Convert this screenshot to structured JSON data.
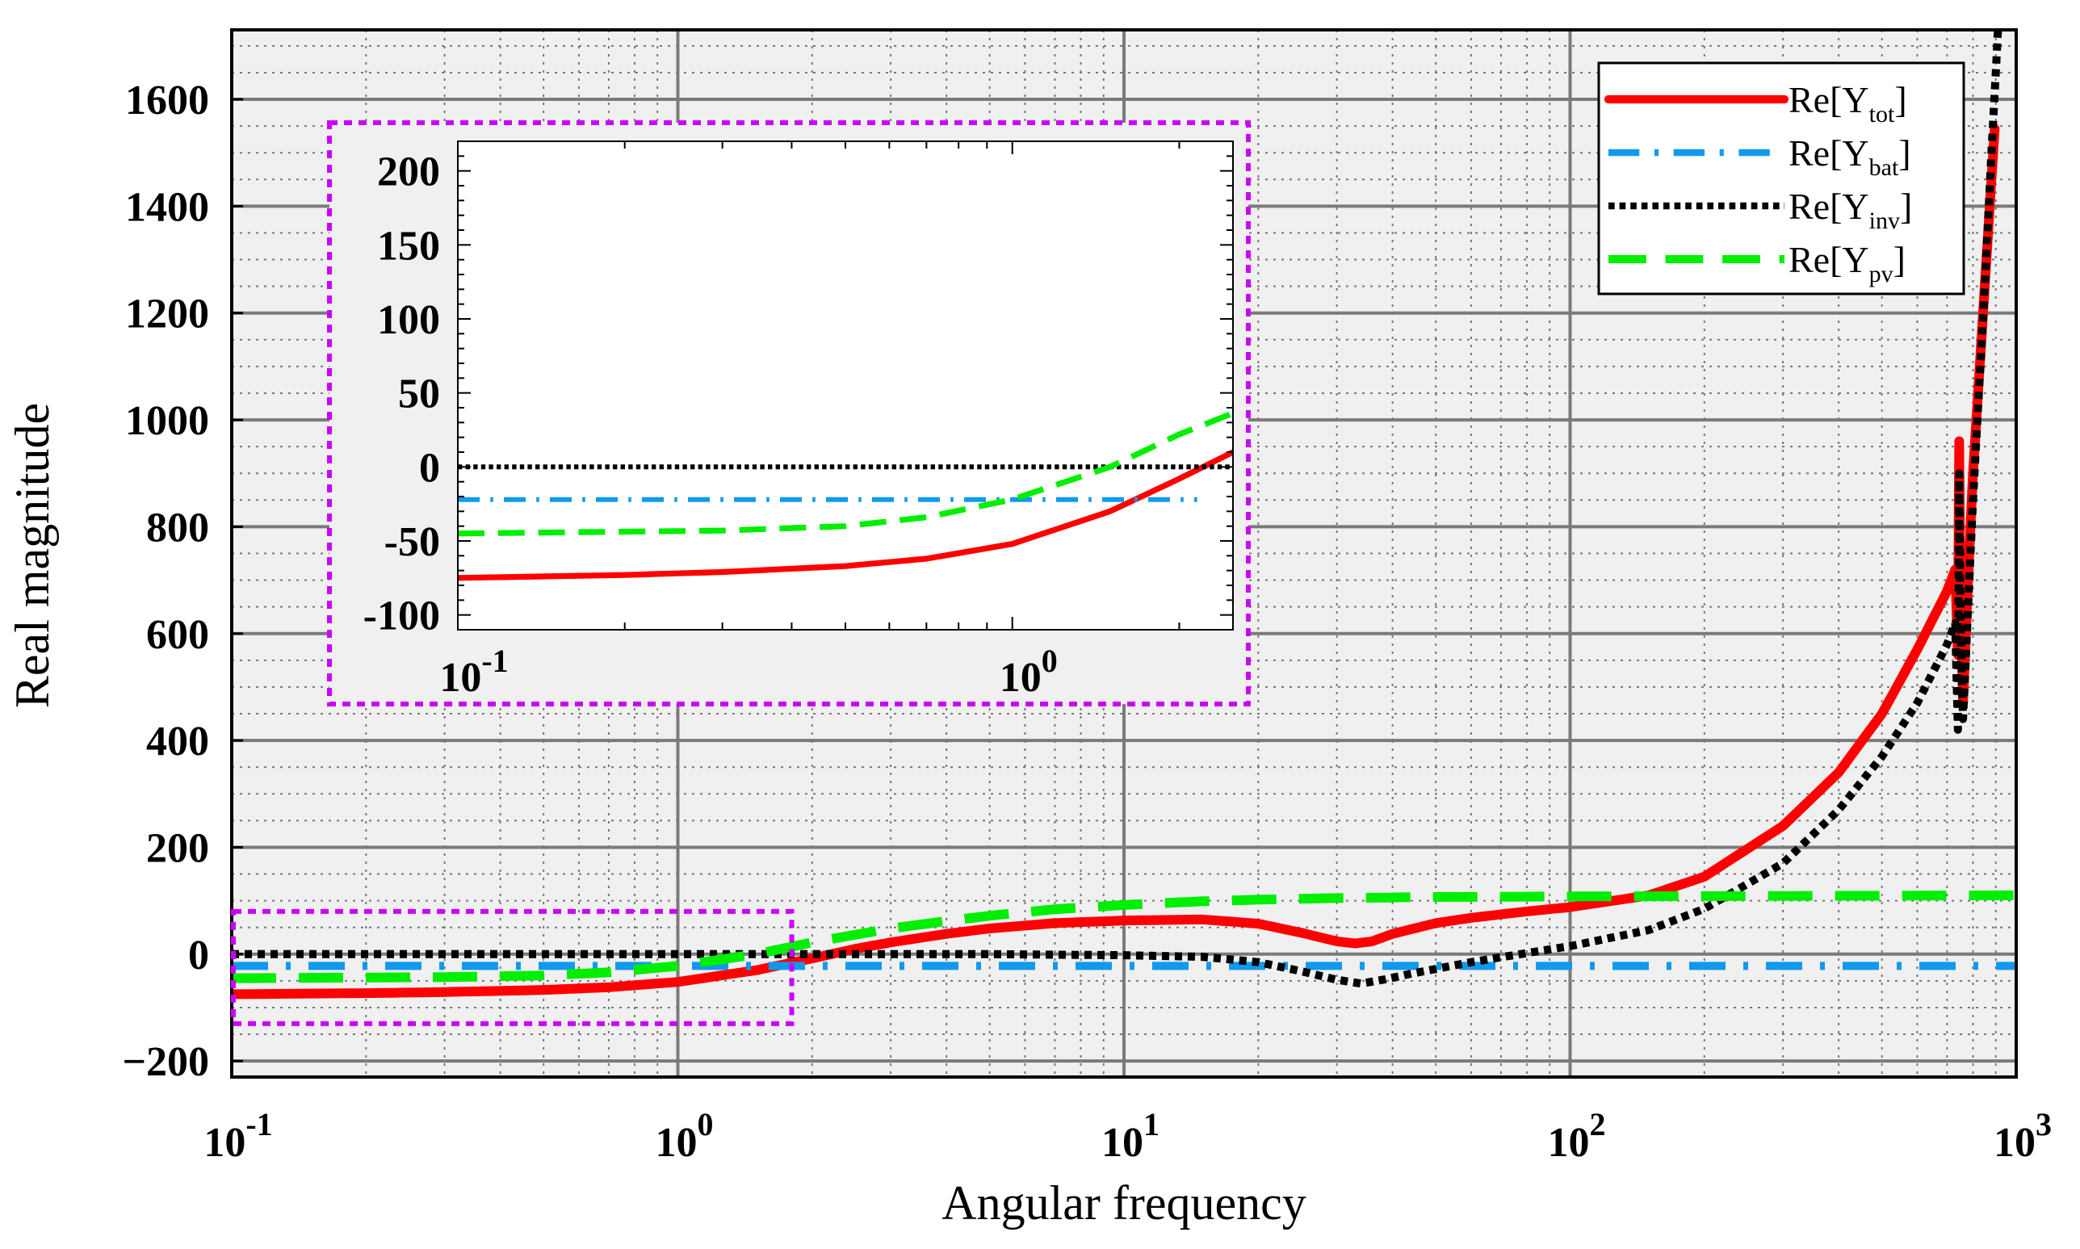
{
  "chart_data": {
    "type": "line",
    "xscale": "log",
    "xlabel": "Angular frequency",
    "ylabel": "Real magnitude",
    "xlim": [
      0.1,
      1000
    ],
    "ylim": [
      -230,
      1730
    ],
    "grid": true,
    "legend_position": "top-right",
    "x_ticks": [
      {
        "value": 0.1,
        "base": "10",
        "exp": "-1"
      },
      {
        "value": 1,
        "base": "10",
        "exp": "0"
      },
      {
        "value": 10,
        "base": "10",
        "exp": "1"
      },
      {
        "value": 100,
        "base": "10",
        "exp": "2"
      },
      {
        "value": 1000,
        "base": "10",
        "exp": "3"
      }
    ],
    "y_ticks": [
      {
        "value": -200,
        "label": "−200"
      },
      {
        "value": 0,
        "label": "0"
      },
      {
        "value": 200,
        "label": "200"
      },
      {
        "value": 400,
        "label": "400"
      },
      {
        "value": 600,
        "label": "600"
      },
      {
        "value": 800,
        "label": "800"
      },
      {
        "value": 1000,
        "label": "1000"
      },
      {
        "value": 1200,
        "label": "1200"
      },
      {
        "value": 1400,
        "label": "1400"
      },
      {
        "value": 1600,
        "label": "1600"
      }
    ],
    "series": [
      {
        "name": "Re[Y_tot]",
        "legend_main": "Re[Y",
        "legend_sub": "tot",
        "legend_close": "]",
        "color": "#ff0000",
        "style": "solid",
        "points": [
          [
            0.1,
            -75
          ],
          [
            0.2,
            -73
          ],
          [
            0.3,
            -71
          ],
          [
            0.5,
            -67
          ],
          [
            0.7,
            -62
          ],
          [
            1,
            -52
          ],
          [
            1.5,
            -30
          ],
          [
            2,
            -8
          ],
          [
            2.5,
            10
          ],
          [
            3,
            22
          ],
          [
            4,
            38
          ],
          [
            5,
            48
          ],
          [
            7,
            58
          ],
          [
            10,
            63
          ],
          [
            15,
            65
          ],
          [
            20,
            57
          ],
          [
            25,
            40
          ],
          [
            30,
            24
          ],
          [
            33,
            20
          ],
          [
            36,
            24
          ],
          [
            40,
            38
          ],
          [
            50,
            58
          ],
          [
            60,
            68
          ],
          [
            80,
            80
          ],
          [
            100,
            88
          ],
          [
            150,
            110
          ],
          [
            200,
            145
          ],
          [
            300,
            240
          ],
          [
            400,
            340
          ],
          [
            500,
            450
          ],
          [
            600,
            570
          ],
          [
            700,
            680
          ],
          [
            730,
            720
          ],
          [
            740,
            560
          ],
          [
            745,
            960
          ],
          [
            750,
            650
          ],
          [
            760,
            470
          ],
          [
            780,
            700
          ],
          [
            800,
            900
          ],
          [
            850,
            1250
          ],
          [
            880,
            1450
          ],
          [
            895,
            1545
          ]
        ]
      },
      {
        "name": "Re[Y_bat]",
        "legend_main": "Re[Y",
        "legend_sub": "bat",
        "legend_close": "]",
        "color": "#1199ee",
        "style": "dashdot",
        "points": [
          [
            0.1,
            -22
          ],
          [
            1000,
            -22
          ]
        ]
      },
      {
        "name": "Re[Y_inv]",
        "legend_main": "Re[Y",
        "legend_sub": "inv",
        "legend_close": "]",
        "color": "#000000",
        "style": "dotted",
        "points": [
          [
            0.1,
            0
          ],
          [
            1,
            0
          ],
          [
            5,
            0
          ],
          [
            10,
            -2
          ],
          [
            15,
            -5
          ],
          [
            20,
            -15
          ],
          [
            25,
            -32
          ],
          [
            30,
            -48
          ],
          [
            34,
            -55
          ],
          [
            38,
            -48
          ],
          [
            45,
            -35
          ],
          [
            60,
            -15
          ],
          [
            80,
            2
          ],
          [
            100,
            15
          ],
          [
            150,
            45
          ],
          [
            200,
            85
          ],
          [
            300,
            170
          ],
          [
            400,
            270
          ],
          [
            500,
            370
          ],
          [
            600,
            470
          ],
          [
            700,
            580
          ],
          [
            730,
            620
          ],
          [
            740,
            420
          ],
          [
            745,
            900
          ],
          [
            750,
            620
          ],
          [
            760,
            440
          ],
          [
            780,
            650
          ],
          [
            800,
            850
          ],
          [
            850,
            1250
          ],
          [
            880,
            1500
          ],
          [
            900,
            1650
          ],
          [
            910,
            1730
          ]
        ]
      },
      {
        "name": "Re[Y_pv]",
        "legend_main": "Re[Y",
        "legend_sub": "pv",
        "legend_close": "]",
        "color": "#00ee00",
        "style": "dashed",
        "points": [
          [
            0.1,
            -45
          ],
          [
            0.3,
            -43
          ],
          [
            0.5,
            -40
          ],
          [
            0.7,
            -34
          ],
          [
            1,
            -22
          ],
          [
            1.5,
            0
          ],
          [
            2,
            22
          ],
          [
            3,
            48
          ],
          [
            4,
            62
          ],
          [
            5,
            72
          ],
          [
            7,
            84
          ],
          [
            10,
            92
          ],
          [
            15,
            99
          ],
          [
            20,
            102
          ],
          [
            30,
            105
          ],
          [
            50,
            107
          ],
          [
            100,
            108
          ],
          [
            1000,
            110
          ]
        ]
      }
    ],
    "inset": {
      "xlim": [
        0.1,
        2.5
      ],
      "ylim": [
        -110,
        220
      ],
      "x_ticks": [
        {
          "value": 0.1,
          "base": "10",
          "exp": "-1"
        },
        {
          "value": 1,
          "base": "10",
          "exp": "0"
        }
      ],
      "y_ticks": [
        {
          "value": -100,
          "label": "-100"
        },
        {
          "value": -50,
          "label": "-50"
        },
        {
          "value": 0,
          "label": "0"
        },
        {
          "value": 50,
          "label": "50"
        },
        {
          "value": 100,
          "label": "100"
        },
        {
          "value": 150,
          "label": "150"
        },
        {
          "value": 200,
          "label": "200"
        }
      ],
      "zoom_region": {
        "x": [
          0.1,
          1.8
        ],
        "y": [
          -130,
          80
        ]
      }
    }
  }
}
